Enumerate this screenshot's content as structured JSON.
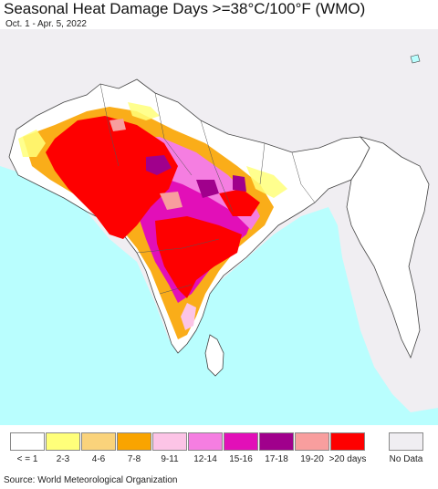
{
  "title": "Seasonal Heat Damage Days >=38°C/100°F (WMO)",
  "subtitle": "Oct. 1 - Apr. 5, 2022",
  "legend": {
    "items": [
      {
        "label": "< = 1",
        "color": "#ffffff"
      },
      {
        "label": "2-3",
        "color": "#ffff7a"
      },
      {
        "label": "4-6",
        "color": "#fad37b"
      },
      {
        "label": "7-8",
        "color": "#f9a400"
      },
      {
        "label": "9-11",
        "color": "#fcc4e6"
      },
      {
        "label": "12-14",
        "color": "#f57ee1"
      },
      {
        "label": "15-16",
        "color": "#e20fb8"
      },
      {
        "label": "17-18",
        "color": "#a0008c"
      },
      {
        "label": "19-20",
        "color": "#f89e9e"
      },
      {
        "label": ">20 days",
        "color": "#fe0000"
      }
    ],
    "no_data": {
      "label": "No Data",
      "color": "#f0eef2"
    }
  },
  "colors": {
    "ocean": "#b9fefe",
    "land": "#ffffff",
    "outside": "#f0eef2",
    "border": "#444444"
  },
  "source": "Source: World Meteorological Organization"
}
